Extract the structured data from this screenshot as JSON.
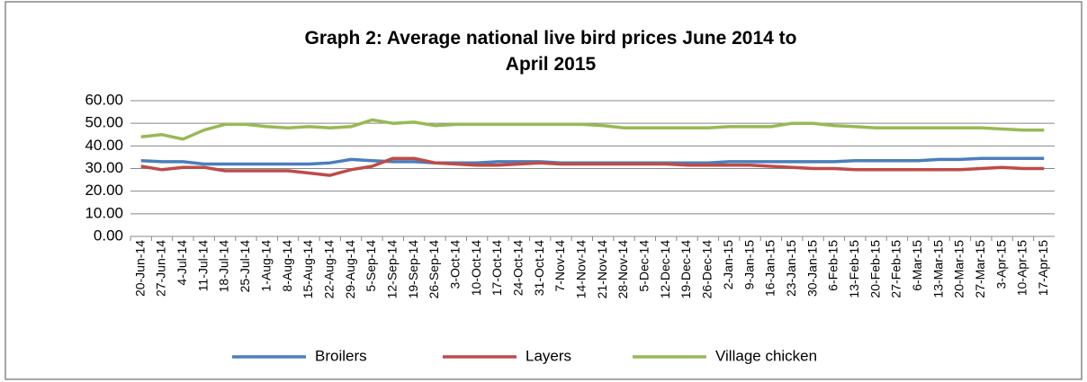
{
  "chart_data": {
    "type": "line",
    "title": "Graph 2: Average national live bird prices June 2014 to April 2015",
    "categories": [
      "20-Jun-14",
      "27-Jun-14",
      "4-Jul-14",
      "11-Jul-14",
      "18-Jul-14",
      "25-Jul-14",
      "1-Aug-14",
      "8-Aug-14",
      "15-Aug-14",
      "22-Aug-14",
      "29-Aug-14",
      "5-Sep-14",
      "12-Sep-14",
      "19-Sep-14",
      "26-Sep-14",
      "3-Oct-14",
      "10-Oct-14",
      "17-Oct-14",
      "24-Oct-14",
      "31-Oct-14",
      "7-Nov-14",
      "14-Nov-14",
      "21-Nov-14",
      "28-Nov-14",
      "5-Dec-14",
      "12-Dec-14",
      "19-Dec-14",
      "26-Dec-14",
      "2-Jan-15",
      "9-Jan-15",
      "16-Jan-15",
      "23-Jan-15",
      "30-Jan-15",
      "6-Feb-15",
      "13-Feb-15",
      "20-Feb-15",
      "27-Feb-15",
      "6-Mar-15",
      "13-Mar-15",
      "20-Mar-15",
      "27-Mar-15",
      "3-Apr-15",
      "10-Apr-15",
      "17-Apr-15"
    ],
    "series": [
      {
        "name": "Broilers",
        "color": "#4a7ebb",
        "values": [
          33.5,
          33,
          33,
          32,
          32,
          32,
          32,
          32,
          32,
          32.5,
          34,
          33.5,
          33,
          33,
          32.5,
          32.5,
          32.5,
          33,
          33,
          33,
          32.5,
          32.5,
          32.5,
          32.5,
          32.5,
          32.5,
          32.5,
          32.5,
          33,
          33,
          33,
          33,
          33,
          33,
          33.5,
          33.5,
          33.5,
          33.5,
          34,
          34,
          34.5,
          34.5,
          34.5,
          34.5
        ]
      },
      {
        "name": "Layers",
        "color": "#be4b48",
        "values": [
          31,
          29.5,
          30.5,
          30.5,
          29,
          29,
          29,
          29,
          28,
          27,
          29.5,
          31,
          34.5,
          34.5,
          32.5,
          32,
          31.5,
          31.5,
          32,
          32.5,
          32,
          32,
          32,
          32,
          32,
          32,
          31.5,
          31.5,
          31.5,
          31.5,
          31,
          30.5,
          30,
          30,
          29.5,
          29.5,
          29.5,
          29.5,
          29.5,
          29.5,
          30,
          30.5,
          30,
          30
        ]
      },
      {
        "name": "Village chicken",
        "color": "#98b954",
        "values": [
          44,
          45,
          43,
          47,
          49.5,
          49.5,
          48.5,
          48,
          48.5,
          48,
          48.5,
          51.5,
          50,
          50.5,
          49,
          49.5,
          49.5,
          49.5,
          49.5,
          49.5,
          49.5,
          49.5,
          49,
          48,
          48,
          48,
          48,
          48,
          48.5,
          48.5,
          48.5,
          50,
          50,
          49,
          48.5,
          48,
          48,
          48,
          48,
          48,
          48,
          47.5,
          47,
          47
        ]
      }
    ],
    "ylim": [
      0,
      60
    ],
    "yticks": [
      {
        "value": 0,
        "label": "0.00"
      },
      {
        "value": 10,
        "label": "10.00"
      },
      {
        "value": 20,
        "label": "20.00"
      },
      {
        "value": 30,
        "label": "30.00"
      },
      {
        "value": 40,
        "label": "40.00"
      },
      {
        "value": 50,
        "label": "50.00"
      },
      {
        "value": 60,
        "label": "60.00"
      }
    ],
    "grid": true,
    "legend": "bottom"
  }
}
